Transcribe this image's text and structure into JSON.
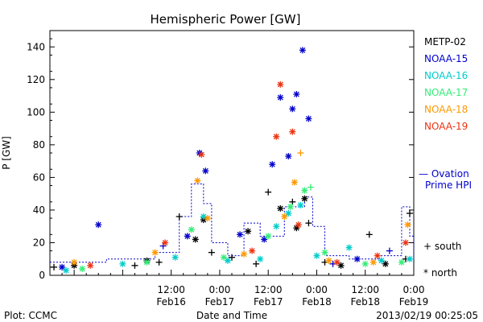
{
  "footer": {
    "left": "Plot: CCMC",
    "center": "Date and Time",
    "right": "2013/02/19 00:25:05"
  },
  "chart_data": {
    "type": "scatter",
    "title": "Hemispheric Power [GW]",
    "ylabel": "P [GW]",
    "xlabel": "Date and Time",
    "ylim": [
      0,
      150
    ],
    "y_ticks": [
      0,
      20,
      40,
      60,
      80,
      100,
      120,
      140
    ],
    "xlim": [
      "2013-02-15 06:00",
      "2013-02-19 00:00"
    ],
    "x_ticks": [
      {
        "t": "2013-02-16 12:00",
        "l1": "12:00",
        "l2": "Feb16"
      },
      {
        "t": "2013-02-17 00:00",
        "l1": "0:00",
        "l2": "Feb17"
      },
      {
        "t": "2013-02-17 12:00",
        "l1": "12:00",
        "l2": "Feb17"
      },
      {
        "t": "2013-02-18 00:00",
        "l1": "0:00",
        "l2": "Feb18"
      },
      {
        "t": "2013-02-18 12:00",
        "l1": "12:00",
        "l2": "Feb18"
      },
      {
        "t": "2013-02-19 00:00",
        "l1": "0:00",
        "l2": "Feb19"
      }
    ],
    "legend_position": "right",
    "markers_legend": {
      "south": "+ south",
      "north": "* north"
    },
    "series": [
      {
        "name": "METP-02",
        "color": "#000000",
        "points": [
          {
            "t": "2013-02-15 07:00",
            "y": 5,
            "m": "+"
          },
          {
            "t": "2013-02-15 12:00",
            "y": 6,
            "m": "*"
          },
          {
            "t": "2013-02-16 03:00",
            "y": 6,
            "m": "+"
          },
          {
            "t": "2013-02-16 06:00",
            "y": 9,
            "m": "*"
          },
          {
            "t": "2013-02-16 09:00",
            "y": 8,
            "m": "+"
          },
          {
            "t": "2013-02-16 14:00",
            "y": 36,
            "m": "+"
          },
          {
            "t": "2013-02-16 18:00",
            "y": 22,
            "m": "*"
          },
          {
            "t": "2013-02-16 20:00",
            "y": 34,
            "m": "*"
          },
          {
            "t": "2013-02-16 22:00",
            "y": 14,
            "m": "+"
          },
          {
            "t": "2013-02-17 03:00",
            "y": 11,
            "m": "+"
          },
          {
            "t": "2013-02-17 07:00",
            "y": 27,
            "m": "*"
          },
          {
            "t": "2013-02-17 09:00",
            "y": 7,
            "m": "+"
          },
          {
            "t": "2013-02-17 12:00",
            "y": 51,
            "m": "+"
          },
          {
            "t": "2013-02-17 15:00",
            "y": 41,
            "m": "*"
          },
          {
            "t": "2013-02-17 18:00",
            "y": 45,
            "m": "+"
          },
          {
            "t": "2013-02-17 19:00",
            "y": 29,
            "m": "*"
          },
          {
            "t": "2013-02-17 21:00",
            "y": 47,
            "m": "*"
          },
          {
            "t": "2013-02-17 22:00",
            "y": 32,
            "m": "+"
          },
          {
            "t": "2013-02-18 02:00",
            "y": 8,
            "m": "+"
          },
          {
            "t": "2013-02-18 06:00",
            "y": 6,
            "m": "*"
          },
          {
            "t": "2013-02-18 13:00",
            "y": 25,
            "m": "+"
          },
          {
            "t": "2013-02-18 17:00",
            "y": 7,
            "m": "*"
          },
          {
            "t": "2013-02-18 22:00",
            "y": 10,
            "m": "+"
          },
          {
            "t": "2013-02-18 23:00",
            "y": 38,
            "m": "+"
          }
        ]
      },
      {
        "name": "NOAA-15",
        "color": "#0000cc",
        "points": [
          {
            "t": "2013-02-15 09:00",
            "y": 5,
            "m": "*"
          },
          {
            "t": "2013-02-15 18:00",
            "y": 31,
            "m": "*"
          },
          {
            "t": "2013-02-16 10:00",
            "y": 18,
            "m": "+"
          },
          {
            "t": "2013-02-16 16:00",
            "y": 24,
            "m": "*"
          },
          {
            "t": "2013-02-16 19:00",
            "y": 75,
            "m": "*"
          },
          {
            "t": "2013-02-16 20:30",
            "y": 64,
            "m": "*"
          },
          {
            "t": "2013-02-17 05:00",
            "y": 25,
            "m": "*"
          },
          {
            "t": "2013-02-17 11:00",
            "y": 22,
            "m": "*"
          },
          {
            "t": "2013-02-17 13:00",
            "y": 68,
            "m": "*"
          },
          {
            "t": "2013-02-17 15:00",
            "y": 109,
            "m": "*"
          },
          {
            "t": "2013-02-17 17:00",
            "y": 73,
            "m": "*"
          },
          {
            "t": "2013-02-17 18:00",
            "y": 102,
            "m": "*"
          },
          {
            "t": "2013-02-17 19:00",
            "y": 111,
            "m": "*"
          },
          {
            "t": "2013-02-17 20:30",
            "y": 138,
            "m": "*"
          },
          {
            "t": "2013-02-17 22:00",
            "y": 96,
            "m": "*"
          },
          {
            "t": "2013-02-18 04:00",
            "y": 7,
            "m": "+"
          },
          {
            "t": "2013-02-18 10:00",
            "y": 10,
            "m": "*"
          },
          {
            "t": "2013-02-18 18:00",
            "y": 15,
            "m": "+"
          }
        ]
      },
      {
        "name": "NOAA-16",
        "color": "#00cccc",
        "points": [
          {
            "t": "2013-02-15 10:00",
            "y": 3,
            "m": "*"
          },
          {
            "t": "2013-02-16 00:00",
            "y": 7,
            "m": "*"
          },
          {
            "t": "2013-02-16 13:00",
            "y": 11,
            "m": "*"
          },
          {
            "t": "2013-02-16 20:00",
            "y": 36,
            "m": "*"
          },
          {
            "t": "2013-02-17 02:00",
            "y": 9,
            "m": "*"
          },
          {
            "t": "2013-02-17 10:00",
            "y": 10,
            "m": "*"
          },
          {
            "t": "2013-02-17 14:00",
            "y": 30,
            "m": "*"
          },
          {
            "t": "2013-02-17 17:00",
            "y": 38,
            "m": "*"
          },
          {
            "t": "2013-02-17 20:00",
            "y": 43,
            "m": "*"
          },
          {
            "t": "2013-02-18 00:00",
            "y": 12,
            "m": "*"
          },
          {
            "t": "2013-02-18 08:00",
            "y": 17,
            "m": "*"
          },
          {
            "t": "2013-02-18 16:00",
            "y": 9,
            "m": "*"
          },
          {
            "t": "2013-02-18 23:00",
            "y": 10,
            "m": "*"
          }
        ]
      },
      {
        "name": "NOAA-17",
        "color": "#33ee77",
        "points": [
          {
            "t": "2013-02-15 14:00",
            "y": 4,
            "m": "*"
          },
          {
            "t": "2013-02-16 06:00",
            "y": 8,
            "m": "*"
          },
          {
            "t": "2013-02-16 17:00",
            "y": 28,
            "m": "*"
          },
          {
            "t": "2013-02-17 01:00",
            "y": 11,
            "m": "*"
          },
          {
            "t": "2013-02-17 12:00",
            "y": 24,
            "m": "*"
          },
          {
            "t": "2013-02-17 17:30",
            "y": 42,
            "m": "*"
          },
          {
            "t": "2013-02-17 21:00",
            "y": 52,
            "m": "*"
          },
          {
            "t": "2013-02-17 22:30",
            "y": 54,
            "m": "+"
          },
          {
            "t": "2013-02-18 02:00",
            "y": 14,
            "m": "*"
          },
          {
            "t": "2013-02-18 12:00",
            "y": 7,
            "m": "*"
          },
          {
            "t": "2013-02-18 21:00",
            "y": 8,
            "m": "*"
          }
        ]
      },
      {
        "name": "NOAA-18",
        "color": "#ff9900",
        "points": [
          {
            "t": "2013-02-15 12:00",
            "y": 8,
            "m": "*"
          },
          {
            "t": "2013-02-16 08:00",
            "y": 14,
            "m": "*"
          },
          {
            "t": "2013-02-16 18:30",
            "y": 58,
            "m": "*"
          },
          {
            "t": "2013-02-16 21:00",
            "y": 35,
            "m": "*"
          },
          {
            "t": "2013-02-17 06:00",
            "y": 13,
            "m": "*"
          },
          {
            "t": "2013-02-17 16:00",
            "y": 36,
            "m": "*"
          },
          {
            "t": "2013-02-17 18:30",
            "y": 57,
            "m": "*"
          },
          {
            "t": "2013-02-17 20:00",
            "y": 75,
            "m": "+"
          },
          {
            "t": "2013-02-18 03:00",
            "y": 9,
            "m": "*"
          },
          {
            "t": "2013-02-18 14:00",
            "y": 8,
            "m": "*"
          },
          {
            "t": "2013-02-18 22:30",
            "y": 31,
            "m": "*"
          }
        ]
      },
      {
        "name": "NOAA-19",
        "color": "#ee3311",
        "points": [
          {
            "t": "2013-02-15 16:00",
            "y": 6,
            "m": "*"
          },
          {
            "t": "2013-02-16 10:30",
            "y": 20,
            "m": "*"
          },
          {
            "t": "2013-02-16 19:30",
            "y": 74,
            "m": "*"
          },
          {
            "t": "2013-02-17 08:00",
            "y": 15,
            "m": "*"
          },
          {
            "t": "2013-02-17 14:00",
            "y": 85,
            "m": "*"
          },
          {
            "t": "2013-02-17 15:00",
            "y": 117,
            "m": "*"
          },
          {
            "t": "2013-02-17 18:00",
            "y": 88,
            "m": "*"
          },
          {
            "t": "2013-02-17 19:30",
            "y": 31,
            "m": "*"
          },
          {
            "t": "2013-02-18 05:00",
            "y": 8,
            "m": "*"
          },
          {
            "t": "2013-02-18 15:00",
            "y": 12,
            "m": "*"
          },
          {
            "t": "2013-02-18 22:00",
            "y": 20,
            "m": "*"
          }
        ]
      }
    ],
    "ovation": {
      "label_line1": "— Ovation",
      "label_line2": "Prime HPI",
      "color": "#0000cc",
      "points": [
        {
          "t": "2013-02-15 06:00",
          "y": 8
        },
        {
          "t": "2013-02-15 20:00",
          "y": 10
        },
        {
          "t": "2013-02-16 08:00",
          "y": 14
        },
        {
          "t": "2013-02-16 14:00",
          "y": 36
        },
        {
          "t": "2013-02-16 17:00",
          "y": 56
        },
        {
          "t": "2013-02-16 20:00",
          "y": 44
        },
        {
          "t": "2013-02-16 22:00",
          "y": 20
        },
        {
          "t": "2013-02-17 02:00",
          "y": 12
        },
        {
          "t": "2013-02-17 06:00",
          "y": 32
        },
        {
          "t": "2013-02-17 10:00",
          "y": 24
        },
        {
          "t": "2013-02-17 16:00",
          "y": 42
        },
        {
          "t": "2013-02-17 21:00",
          "y": 48
        },
        {
          "t": "2013-02-17 23:00",
          "y": 30
        },
        {
          "t": "2013-02-18 02:00",
          "y": 12
        },
        {
          "t": "2013-02-18 08:00",
          "y": 10
        },
        {
          "t": "2013-02-18 16:00",
          "y": 12
        },
        {
          "t": "2013-02-18 21:00",
          "y": 42
        },
        {
          "t": "2013-02-18 23:00",
          "y": 24
        },
        {
          "t": "2013-02-19 00:00",
          "y": 10
        }
      ]
    }
  }
}
